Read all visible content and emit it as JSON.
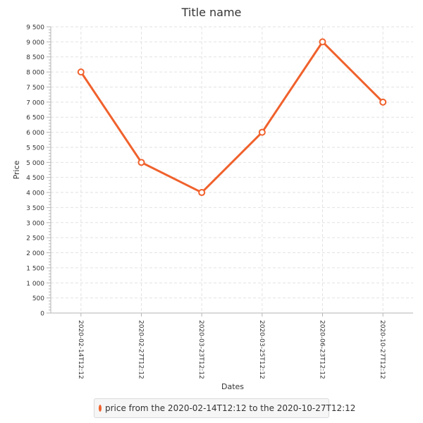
{
  "chart_data": {
    "type": "line",
    "title": "Title name",
    "xlabel": "Dates",
    "ylabel": "Price",
    "categories": [
      "2020-02-14T12:12",
      "2020-02-27T12:12",
      "2020-03-23T12:12",
      "2020-03-25T12:12",
      "2020-06-23T12:12",
      "2020-10-27T12:12"
    ],
    "series": [
      {
        "name": "price from the 2020-02-14T12:12 to the 2020-10-27T12:12",
        "values": [
          8000,
          5000,
          4000,
          6000,
          9000,
          7000
        ]
      }
    ],
    "ylim": [
      0,
      9500
    ],
    "y_major_ticks": [
      0,
      500,
      1000,
      1500,
      2000,
      2500,
      3000,
      3500,
      4000,
      4500,
      5000,
      5500,
      6000,
      6500,
      7000,
      7500,
      8000,
      8500,
      9000,
      9500
    ],
    "y_tick_labels": [
      "0",
      "500",
      "1 000",
      "1 500",
      "2 000",
      "2 500",
      "3 000",
      "3 500",
      "4 000",
      "4 500",
      "5 000",
      "5 500",
      "6 000",
      "6 500",
      "7 000",
      "7 500",
      "8 000",
      "8 500",
      "9 000",
      "9 500"
    ],
    "grid": true,
    "legend_position": "bottom",
    "series_color": "#f0612c"
  }
}
